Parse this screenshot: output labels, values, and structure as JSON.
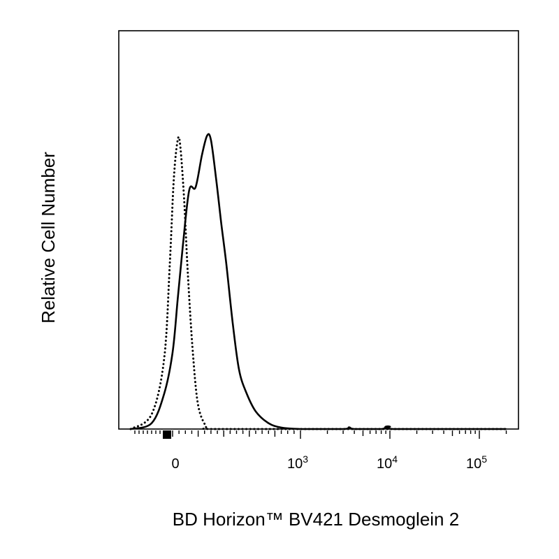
{
  "chart_data": {
    "type": "line",
    "title": "",
    "xlabel": "BD Horizon™ BV421 Desmoglein 2",
    "ylabel": "Relative Cell Number",
    "x_scale": "biexponential",
    "xlim": [
      -400,
      200000
    ],
    "ylim": [
      0,
      1.0
    ],
    "grid": false,
    "legend": "none",
    "x_tick_labels": [
      {
        "base": "0",
        "exp": "",
        "value": 0
      },
      {
        "base": "10",
        "exp": "3",
        "value": 1000
      },
      {
        "base": "10",
        "exp": "4",
        "value": 10000
      },
      {
        "base": "10",
        "exp": "5",
        "value": 100000
      }
    ],
    "series": [
      {
        "style": "solid",
        "color": "#000000",
        "x": [
          -300,
          -150,
          -60,
          0,
          40,
          80,
          130,
          180,
          230,
          270,
          300,
          340,
          380,
          420,
          470,
          520,
          580,
          650,
          750,
          850,
          1000,
          3000,
          3500,
          4000,
          8000,
          9000,
          10000,
          11000,
          100000,
          200000
        ],
        "y": [
          0,
          0.02,
          0.12,
          0.26,
          0.44,
          0.62,
          0.81,
          0.82,
          0.93,
          0.995,
          0.98,
          0.85,
          0.7,
          0.56,
          0.36,
          0.2,
          0.12,
          0.06,
          0.02,
          0.005,
          0,
          0,
          0.006,
          0,
          0,
          0.008,
          0.008,
          0,
          0,
          0
        ]
      },
      {
        "style": "dotted",
        "color": "#000000",
        "x": [
          -300,
          -150,
          -60,
          -20,
          10,
          40,
          60,
          90,
          120,
          160,
          200,
          260,
          300,
          1000,
          10000,
          200000
        ],
        "y": [
          0,
          0.05,
          0.24,
          0.56,
          0.85,
          0.98,
          0.96,
          0.78,
          0.52,
          0.25,
          0.08,
          0.01,
          0,
          0,
          0,
          0
        ]
      }
    ]
  }
}
